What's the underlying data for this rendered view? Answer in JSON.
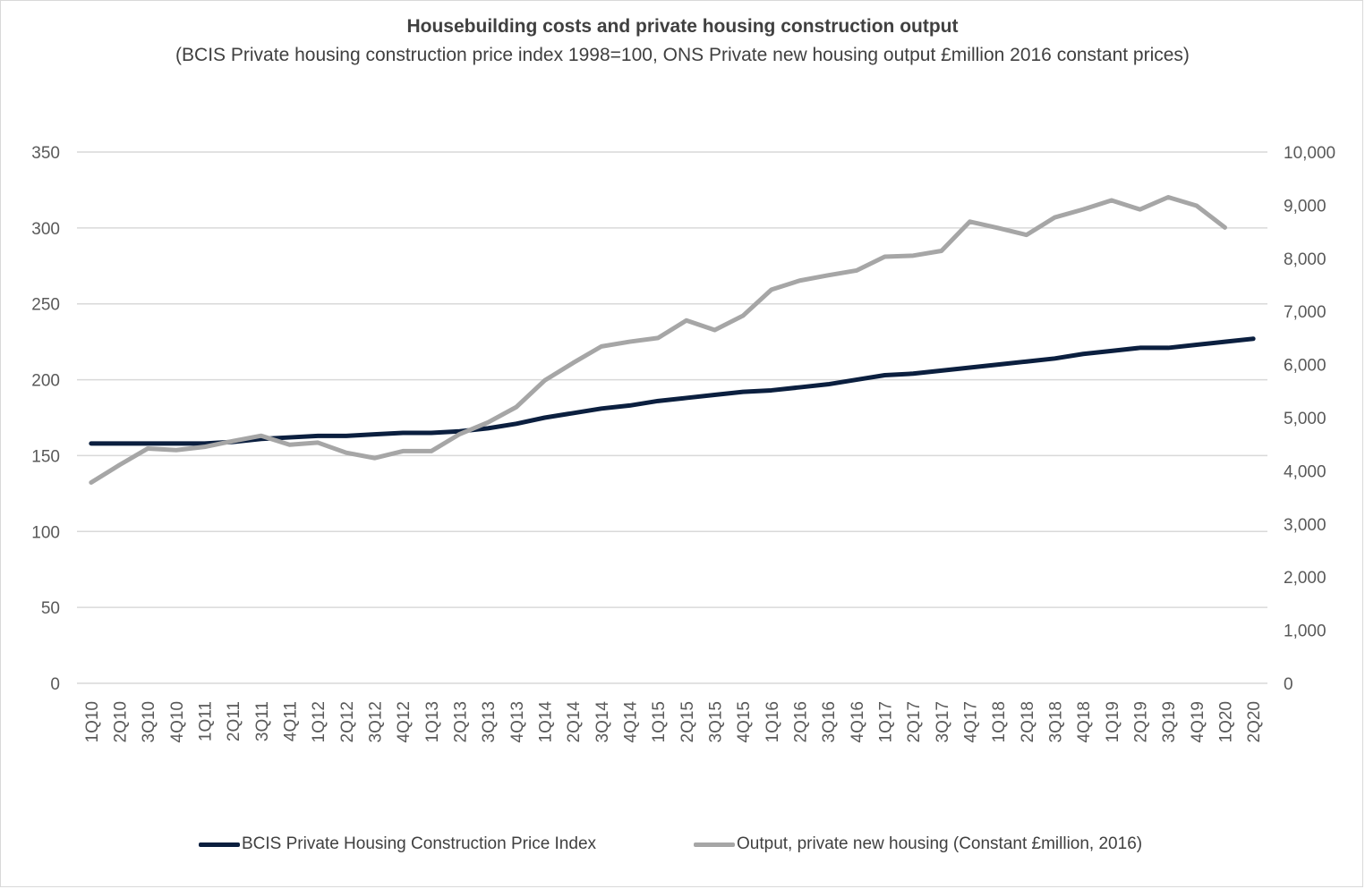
{
  "chart_data": {
    "type": "line",
    "title": "Housebuilding costs and private housing construction output",
    "subtitle": "(BCIS Private housing construction price index 1998=100, ONS Private new housing output £million 2016 constant prices)",
    "categories": [
      "1Q10",
      "2Q10",
      "3Q10",
      "4Q10",
      "1Q11",
      "2Q11",
      "3Q11",
      "4Q11",
      "1Q12",
      "2Q12",
      "3Q12",
      "4Q12",
      "1Q13",
      "2Q13",
      "3Q13",
      "4Q13",
      "1Q14",
      "2Q14",
      "3Q14",
      "4Q14",
      "1Q15",
      "2Q15",
      "3Q15",
      "4Q15",
      "1Q16",
      "2Q16",
      "3Q16",
      "4Q16",
      "1Q17",
      "2Q17",
      "3Q17",
      "4Q17",
      "1Q18",
      "2Q18",
      "3Q18",
      "4Q18",
      "1Q19",
      "2Q19",
      "3Q19",
      "4Q19",
      "1Q20",
      "2Q20"
    ],
    "y_left": {
      "min": 0,
      "max": 350,
      "ticks": [
        "0",
        "50",
        "100",
        "150",
        "200",
        "250",
        "300",
        "350"
      ]
    },
    "y_right": {
      "min": 0,
      "max": 10000,
      "ticks": [
        "0",
        "1,000",
        "2,000",
        "3,000",
        "4,000",
        "5,000",
        "6,000",
        "7,000",
        "8,000",
        "9,000",
        "10,000"
      ]
    },
    "grid": true,
    "legend_position": "bottom",
    "series": [
      {
        "name": "BCIS Private Housing Construction Price Index",
        "axis": "left",
        "color": "#0b1f3f",
        "values": [
          158,
          158,
          158,
          158,
          158,
          159,
          161,
          162,
          163,
          163,
          164,
          165,
          165,
          166,
          168,
          171,
          175,
          178,
          181,
          183,
          186,
          188,
          190,
          192,
          193,
          195,
          197,
          200,
          203,
          204,
          206,
          208,
          210,
          212,
          214,
          217,
          219,
          221,
          221,
          223,
          225,
          227
        ]
      },
      {
        "name": "Output, private new housing (Constant £million, 2016)",
        "axis": "right",
        "color": "#a6a6a6",
        "values": [
          3780,
          4110,
          4420,
          4390,
          4450,
          4560,
          4660,
          4490,
          4530,
          4340,
          4240,
          4370,
          4370,
          4690,
          4910,
          5200,
          5700,
          6030,
          6340,
          6430,
          6500,
          6830,
          6650,
          6920,
          7410,
          7580,
          7680,
          7770,
          8030,
          8050,
          8140,
          8690,
          8570,
          8440,
          8770,
          8920,
          9090,
          8920,
          9150,
          8990,
          8580,
          null
        ]
      }
    ]
  }
}
